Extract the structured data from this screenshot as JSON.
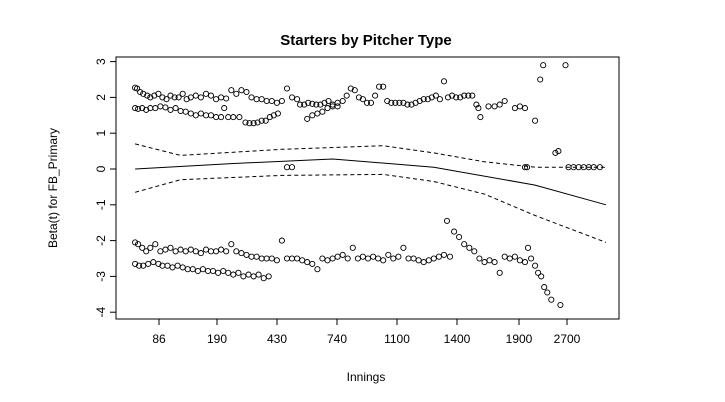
{
  "chart_data": {
    "type": "scatter",
    "title": "Starters by Pitcher Type",
    "xlabel": "Innings",
    "ylabel": "Beta(t) for FB_Primary",
    "x_ticks": [
      "86",
      "190",
      "430",
      "740",
      "1100",
      "1400",
      "1900",
      "2700"
    ],
    "y_ticks": [
      3,
      2,
      1,
      0,
      -1,
      -2,
      -3,
      -4
    ],
    "ylim": [
      -4,
      3
    ],
    "grid": false,
    "legend": "none",
    "color": "#000000",
    "series": [
      {
        "kind": "residual-points",
        "points": [
          [
            0.5,
            2.27
          ],
          [
            0.7,
            2.25
          ],
          [
            1.0,
            2.15
          ],
          [
            1.3,
            2.1
          ],
          [
            1.7,
            2.05
          ],
          [
            2.0,
            2.0
          ],
          [
            2.4,
            2.05
          ],
          [
            2.8,
            2.1
          ],
          [
            3.2,
            2.0
          ],
          [
            3.6,
            1.95
          ],
          [
            4.0,
            2.05
          ],
          [
            4.4,
            2.0
          ],
          [
            4.8,
            2.0
          ],
          [
            5.2,
            2.1
          ],
          [
            5.6,
            1.95
          ],
          [
            6.0,
            2.0
          ],
          [
            6.5,
            2.05
          ],
          [
            7.0,
            2.0
          ],
          [
            7.5,
            2.1
          ],
          [
            8.0,
            2.05
          ],
          [
            8.5,
            1.95
          ],
          [
            9.0,
            2.0
          ],
          [
            9.5,
            1.97
          ],
          [
            10.0,
            2.2
          ],
          [
            10.5,
            2.1
          ],
          [
            11.0,
            2.2
          ],
          [
            11.5,
            2.15
          ],
          [
            12.0,
            2.0
          ],
          [
            12.5,
            1.95
          ],
          [
            13.0,
            1.95
          ],
          [
            13.5,
            1.9
          ],
          [
            14.0,
            1.9
          ],
          [
            14.5,
            1.85
          ],
          [
            15.0,
            1.9
          ],
          [
            15.5,
            2.25
          ],
          [
            16.0,
            2.0
          ],
          [
            16.5,
            1.95
          ],
          [
            0.5,
            1.7
          ],
          [
            0.8,
            1.68
          ],
          [
            1.2,
            1.7
          ],
          [
            1.6,
            1.65
          ],
          [
            2.0,
            1.7
          ],
          [
            2.5,
            1.7
          ],
          [
            3.0,
            1.75
          ],
          [
            3.5,
            1.72
          ],
          [
            4.0,
            1.65
          ],
          [
            4.5,
            1.7
          ],
          [
            5.0,
            1.62
          ],
          [
            5.5,
            1.6
          ],
          [
            6.0,
            1.55
          ],
          [
            6.5,
            1.5
          ],
          [
            7.0,
            1.55
          ],
          [
            7.5,
            1.5
          ],
          [
            8.0,
            1.5
          ],
          [
            8.5,
            1.45
          ],
          [
            9.0,
            1.45
          ],
          [
            9.3,
            1.7
          ],
          [
            9.7,
            1.45
          ],
          [
            10.2,
            1.45
          ],
          [
            10.8,
            1.45
          ],
          [
            11.4,
            1.3
          ],
          [
            11.8,
            1.28
          ],
          [
            12.2,
            1.28
          ],
          [
            12.6,
            1.3
          ],
          [
            13.0,
            1.35
          ],
          [
            13.4,
            1.35
          ],
          [
            13.8,
            1.45
          ],
          [
            14.2,
            1.5
          ],
          [
            14.6,
            1.55
          ],
          [
            16.8,
            1.8
          ],
          [
            17.2,
            1.8
          ],
          [
            17.6,
            1.85
          ],
          [
            18.0,
            1.82
          ],
          [
            18.4,
            1.8
          ],
          [
            18.8,
            1.8
          ],
          [
            19.2,
            1.85
          ],
          [
            19.6,
            1.9
          ],
          [
            20.0,
            1.8
          ],
          [
            20.5,
            1.85
          ],
          [
            21.0,
            1.9
          ],
          [
            21.4,
            2.05
          ],
          [
            21.8,
            2.25
          ],
          [
            22.2,
            2.2
          ],
          [
            22.6,
            2.0
          ],
          [
            23.0,
            1.95
          ],
          [
            23.4,
            1.85
          ],
          [
            23.8,
            1.85
          ],
          [
            24.2,
            2.05
          ],
          [
            24.6,
            2.3
          ],
          [
            25.0,
            2.3
          ],
          [
            25.4,
            1.9
          ],
          [
            25.8,
            1.85
          ],
          [
            26.2,
            1.85
          ],
          [
            26.6,
            1.85
          ],
          [
            27.0,
            1.85
          ],
          [
            27.4,
            1.8
          ],
          [
            27.8,
            1.8
          ],
          [
            28.2,
            1.85
          ],
          [
            28.6,
            1.9
          ],
          [
            29.0,
            1.95
          ],
          [
            29.4,
            1.95
          ],
          [
            29.8,
            2.0
          ],
          [
            30.2,
            2.05
          ],
          [
            30.6,
            1.95
          ],
          [
            31.0,
            2.45
          ],
          [
            31.4,
            2.0
          ],
          [
            31.8,
            2.05
          ],
          [
            32.2,
            2.0
          ],
          [
            32.6,
            2.0
          ],
          [
            33.0,
            2.05
          ],
          [
            33.4,
            2.05
          ],
          [
            33.8,
            2.05
          ],
          [
            34.2,
            1.8
          ],
          [
            34.4,
            1.7
          ],
          [
            34.6,
            1.45
          ],
          [
            35.4,
            1.75
          ],
          [
            36.0,
            1.75
          ],
          [
            36.5,
            1.8
          ],
          [
            37.0,
            1.9
          ],
          [
            38.0,
            1.7
          ],
          [
            38.5,
            1.75
          ],
          [
            39.0,
            1.7
          ],
          [
            40.0,
            1.35
          ],
          [
            40.5,
            2.5
          ],
          [
            40.8,
            2.9
          ],
          [
            42.0,
            0.45
          ],
          [
            42.3,
            0.5
          ],
          [
            43.0,
            2.9
          ],
          [
            17.5,
            1.4
          ],
          [
            18.0,
            1.5
          ],
          [
            18.5,
            1.55
          ],
          [
            19.0,
            1.6
          ],
          [
            19.5,
            1.7
          ],
          [
            20.0,
            1.75
          ],
          [
            20.5,
            1.75
          ],
          [
            15.5,
            0.05
          ],
          [
            16.0,
            0.05
          ],
          [
            39.0,
            0.05
          ],
          [
            39.2,
            0.05
          ],
          [
            43.3,
            0.05
          ],
          [
            43.8,
            0.05
          ],
          [
            44.3,
            0.05
          ],
          [
            44.8,
            0.05
          ],
          [
            45.3,
            0.05
          ],
          [
            45.8,
            0.05
          ],
          [
            46.4,
            0.05
          ],
          [
            0.5,
            -2.05
          ],
          [
            0.8,
            -2.1
          ],
          [
            1.2,
            -2.2
          ],
          [
            1.6,
            -2.3
          ],
          [
            2.0,
            -2.2
          ],
          [
            2.5,
            -2.1
          ],
          [
            3.0,
            -2.3
          ],
          [
            3.5,
            -2.25
          ],
          [
            4.0,
            -2.2
          ],
          [
            4.5,
            -2.3
          ],
          [
            5.0,
            -2.25
          ],
          [
            5.5,
            -2.3
          ],
          [
            6.0,
            -2.25
          ],
          [
            6.5,
            -2.3
          ],
          [
            7.0,
            -2.35
          ],
          [
            7.5,
            -2.25
          ],
          [
            8.0,
            -2.3
          ],
          [
            8.5,
            -2.3
          ],
          [
            9.0,
            -2.25
          ],
          [
            9.5,
            -2.3
          ],
          [
            10.0,
            -2.1
          ],
          [
            10.5,
            -2.3
          ],
          [
            11.0,
            -2.35
          ],
          [
            11.5,
            -2.4
          ],
          [
            12.0,
            -2.45
          ],
          [
            12.5,
            -2.45
          ],
          [
            13.0,
            -2.5
          ],
          [
            13.5,
            -2.5
          ],
          [
            14.0,
            -2.5
          ],
          [
            14.5,
            -2.55
          ],
          [
            15.0,
            -2.0
          ],
          [
            15.5,
            -2.5
          ],
          [
            0.5,
            -2.65
          ],
          [
            0.9,
            -2.7
          ],
          [
            1.3,
            -2.7
          ],
          [
            1.8,
            -2.65
          ],
          [
            2.3,
            -2.6
          ],
          [
            2.8,
            -2.65
          ],
          [
            3.2,
            -2.7
          ],
          [
            3.7,
            -2.7
          ],
          [
            4.2,
            -2.75
          ],
          [
            4.7,
            -2.7
          ],
          [
            5.2,
            -2.75
          ],
          [
            5.7,
            -2.8
          ],
          [
            6.2,
            -2.8
          ],
          [
            6.7,
            -2.85
          ],
          [
            7.2,
            -2.8
          ],
          [
            7.7,
            -2.85
          ],
          [
            8.2,
            -2.85
          ],
          [
            8.7,
            -2.9
          ],
          [
            9.2,
            -2.85
          ],
          [
            9.7,
            -2.9
          ],
          [
            10.2,
            -2.95
          ],
          [
            10.7,
            -2.9
          ],
          [
            11.2,
            -3.0
          ],
          [
            11.7,
            -2.95
          ],
          [
            12.2,
            -3.0
          ],
          [
            12.7,
            -2.95
          ],
          [
            13.2,
            -3.05
          ],
          [
            13.7,
            -3.0
          ],
          [
            16.0,
            -2.5
          ],
          [
            16.5,
            -2.5
          ],
          [
            17.0,
            -2.55
          ],
          [
            17.5,
            -2.6
          ],
          [
            18.0,
            -2.65
          ],
          [
            18.5,
            -2.8
          ],
          [
            19.0,
            -2.5
          ],
          [
            19.5,
            -2.55
          ],
          [
            20.0,
            -2.5
          ],
          [
            20.5,
            -2.45
          ],
          [
            21.0,
            -2.4
          ],
          [
            21.5,
            -2.5
          ],
          [
            22.0,
            -2.2
          ],
          [
            22.5,
            -2.5
          ],
          [
            23.0,
            -2.45
          ],
          [
            23.5,
            -2.5
          ],
          [
            24.0,
            -2.45
          ],
          [
            24.5,
            -2.5
          ],
          [
            25.0,
            -2.55
          ],
          [
            25.5,
            -2.4
          ],
          [
            26.0,
            -2.5
          ],
          [
            26.5,
            -2.45
          ],
          [
            27.0,
            -2.2
          ],
          [
            27.5,
            -2.5
          ],
          [
            28.0,
            -2.5
          ],
          [
            28.5,
            -2.55
          ],
          [
            29.0,
            -2.6
          ],
          [
            29.5,
            -2.55
          ],
          [
            30.0,
            -2.5
          ],
          [
            30.5,
            -2.45
          ],
          [
            31.0,
            -2.4
          ],
          [
            31.3,
            -1.45
          ],
          [
            31.6,
            -2.45
          ],
          [
            32.0,
            -1.75
          ],
          [
            32.5,
            -1.9
          ],
          [
            33.0,
            -2.1
          ],
          [
            33.5,
            -2.2
          ],
          [
            34.0,
            -2.3
          ],
          [
            34.5,
            -2.5
          ],
          [
            35.0,
            -2.6
          ],
          [
            35.5,
            -2.55
          ],
          [
            36.0,
            -2.6
          ],
          [
            36.5,
            -2.9
          ],
          [
            37.0,
            -2.45
          ],
          [
            37.5,
            -2.5
          ],
          [
            38.0,
            -2.45
          ],
          [
            38.5,
            -2.55
          ],
          [
            39.0,
            -2.6
          ],
          [
            39.3,
            -2.2
          ],
          [
            39.6,
            -2.5
          ],
          [
            40.0,
            -2.7
          ],
          [
            40.3,
            -2.9
          ],
          [
            40.6,
            -3.0
          ],
          [
            40.9,
            -3.3
          ],
          [
            41.2,
            -3.45
          ],
          [
            41.6,
            -3.65
          ],
          [
            42.5,
            -3.8
          ]
        ]
      },
      {
        "kind": "fit-line",
        "x": [
          0.5,
          10,
          20,
          30,
          40,
          47
        ],
        "y": [
          0.0,
          0.15,
          0.28,
          0.05,
          -0.45,
          -1.0
        ]
      },
      {
        "kind": "upper-band",
        "x": [
          0.5,
          5,
          15,
          25,
          30,
          35,
          40,
          47
        ],
        "y": [
          0.7,
          0.38,
          0.55,
          0.65,
          0.45,
          0.2,
          0.05,
          0.05
        ]
      },
      {
        "kind": "lower-band",
        "x": [
          0.5,
          5,
          15,
          25,
          30,
          35,
          40,
          47
        ],
        "y": [
          -0.65,
          -0.3,
          -0.18,
          -0.15,
          -0.35,
          -0.7,
          -1.3,
          -2.05
        ]
      }
    ]
  }
}
